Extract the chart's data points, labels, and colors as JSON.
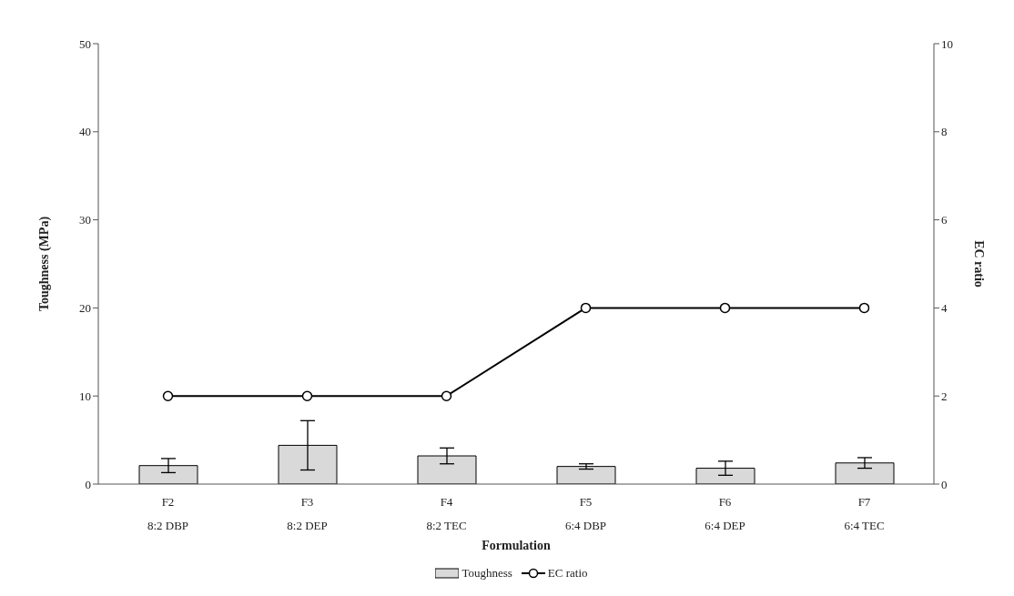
{
  "chart_data": {
    "type": "bar",
    "xlabel": "Formulation",
    "ylabel": "Toughness (MPa)",
    "y2label": "EC ratio",
    "categories": [
      "F2\n8:2 DBP",
      "F3\n8:2 DEP",
      "F4\n8:2 TEC",
      "F5\n6:4 DBP",
      "F6\n6:4 DEP",
      "F7\n6:4 TEC"
    ],
    "series": [
      {
        "name": "Toughness",
        "color": "#d9d9d9",
        "values": [
          2.1,
          4.4,
          3.2,
          2.0,
          1.8,
          2.4
        ],
        "errors": [
          0.8,
          2.8,
          0.9,
          0.3,
          0.8,
          0.6
        ]
      },
      {
        "name": "EC ratio",
        "type": "line",
        "axis": "y2",
        "color": "#000000",
        "marker": "circle",
        "values": [
          2,
          2,
          2,
          4,
          4,
          4
        ]
      }
    ],
    "ylim": [
      0,
      50
    ],
    "yticks": [
      0,
      10,
      20,
      30,
      40,
      50
    ],
    "y2lim": [
      0,
      10
    ],
    "y2ticks": [
      0,
      2,
      4,
      6,
      8,
      10
    ],
    "legend": "bottom"
  }
}
